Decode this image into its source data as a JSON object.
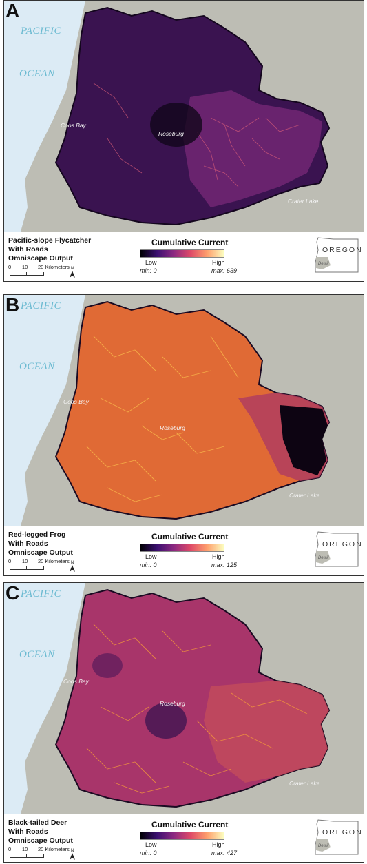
{
  "panels": [
    {
      "letter": "A",
      "species_lines": [
        "Pacific-slope Flycatcher",
        "With Roads",
        "Omniscape Output"
      ],
      "legend_title": "Cumulative Current",
      "low": "Low",
      "high": "High",
      "min": "min: 0",
      "max": "max: 639",
      "fill_color": "#3a1350",
      "fill_color_east": "#7a2a78",
      "streak_color": "#e0607a"
    },
    {
      "letter": "B",
      "species_lines": [
        "Red-legged Frog",
        "With Roads",
        "Omniscape Output"
      ],
      "legend_title": "Cumulative Current",
      "low": "Low",
      "high": "High",
      "min": "min: 0",
      "max": "max: 125",
      "fill_color": "#e06a35",
      "fill_color_east": "#b03d5e",
      "streak_color": "#fbc14d"
    },
    {
      "letter": "C",
      "species_lines": [
        "Black-tailed Deer",
        "With Roads",
        "Omniscape Output"
      ],
      "legend_title": "Cumulative Current",
      "low": "Low",
      "high": "High",
      "min": "min: 0",
      "max": "max: 427",
      "fill_color": "#a8356a",
      "fill_color_east": "#c24a5c",
      "streak_color": "#f59a3a"
    }
  ],
  "map_labels": {
    "ocean_1": "PACIFIC",
    "ocean_2": "OCEAN",
    "city_1": "Coos Bay",
    "city_2": "Roseburg",
    "city_3": "Crater Lake"
  },
  "scale": {
    "zero": "0",
    "ten": "10",
    "twenty": "20 Kilometers",
    "north": "N"
  },
  "inset": {
    "state": "OREGON",
    "detail": "Detail"
  },
  "colors": {
    "ocean": "#dcebf5",
    "land": "#bdbdb4",
    "border": "#333333"
  }
}
